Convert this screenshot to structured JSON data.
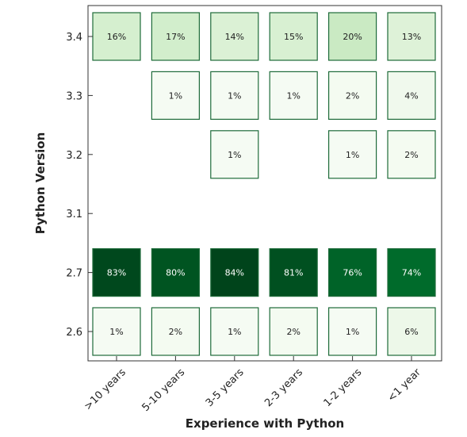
{
  "chart_data": {
    "type": "heatmap",
    "title": "",
    "xlabel": "Experience with Python",
    "ylabel": "Python Version",
    "x_categories": [
      ">10 years",
      "5-10 years",
      "3-5 years",
      "2-3 years",
      "1-2 years",
      "<1 year"
    ],
    "y_categories": [
      "2.6",
      "2.7",
      "3.1",
      "3.2",
      "3.3",
      "3.4"
    ],
    "grid": false,
    "unit": "%",
    "cells": [
      {
        "x": ">10 years",
        "y": "3.4",
        "value": 16
      },
      {
        "x": "5-10 years",
        "y": "3.4",
        "value": 17
      },
      {
        "x": "3-5 years",
        "y": "3.4",
        "value": 14
      },
      {
        "x": "2-3 years",
        "y": "3.4",
        "value": 15
      },
      {
        "x": "1-2 years",
        "y": "3.4",
        "value": 20
      },
      {
        "x": "<1 year",
        "y": "3.4",
        "value": 13
      },
      {
        "x": "5-10 years",
        "y": "3.3",
        "value": 1
      },
      {
        "x": "3-5 years",
        "y": "3.3",
        "value": 1
      },
      {
        "x": "2-3 years",
        "y": "3.3",
        "value": 1
      },
      {
        "x": "1-2 years",
        "y": "3.3",
        "value": 2
      },
      {
        "x": "<1 year",
        "y": "3.3",
        "value": 4
      },
      {
        "x": "3-5 years",
        "y": "3.2",
        "value": 1
      },
      {
        "x": "1-2 years",
        "y": "3.2",
        "value": 1
      },
      {
        "x": "<1 year",
        "y": "3.2",
        "value": 2
      },
      {
        "x": ">10 years",
        "y": "2.7",
        "value": 83
      },
      {
        "x": "5-10 years",
        "y": "2.7",
        "value": 80
      },
      {
        "x": "3-5 years",
        "y": "2.7",
        "value": 84
      },
      {
        "x": "2-3 years",
        "y": "2.7",
        "value": 81
      },
      {
        "x": "1-2 years",
        "y": "2.7",
        "value": 76
      },
      {
        "x": "<1 year",
        "y": "2.7",
        "value": 74
      },
      {
        "x": ">10 years",
        "y": "2.6",
        "value": 1
      },
      {
        "x": "5-10 years",
        "y": "2.6",
        "value": 2
      },
      {
        "x": "3-5 years",
        "y": "2.6",
        "value": 1
      },
      {
        "x": "2-3 years",
        "y": "2.6",
        "value": 2
      },
      {
        "x": "1-2 years",
        "y": "2.6",
        "value": 1
      },
      {
        "x": "<1 year",
        "y": "2.6",
        "value": 6
      }
    ],
    "colors": {
      "low": "#f7fcf5",
      "high": "#00441b",
      "border": "#1e6b3a",
      "frame": "#333333"
    }
  }
}
